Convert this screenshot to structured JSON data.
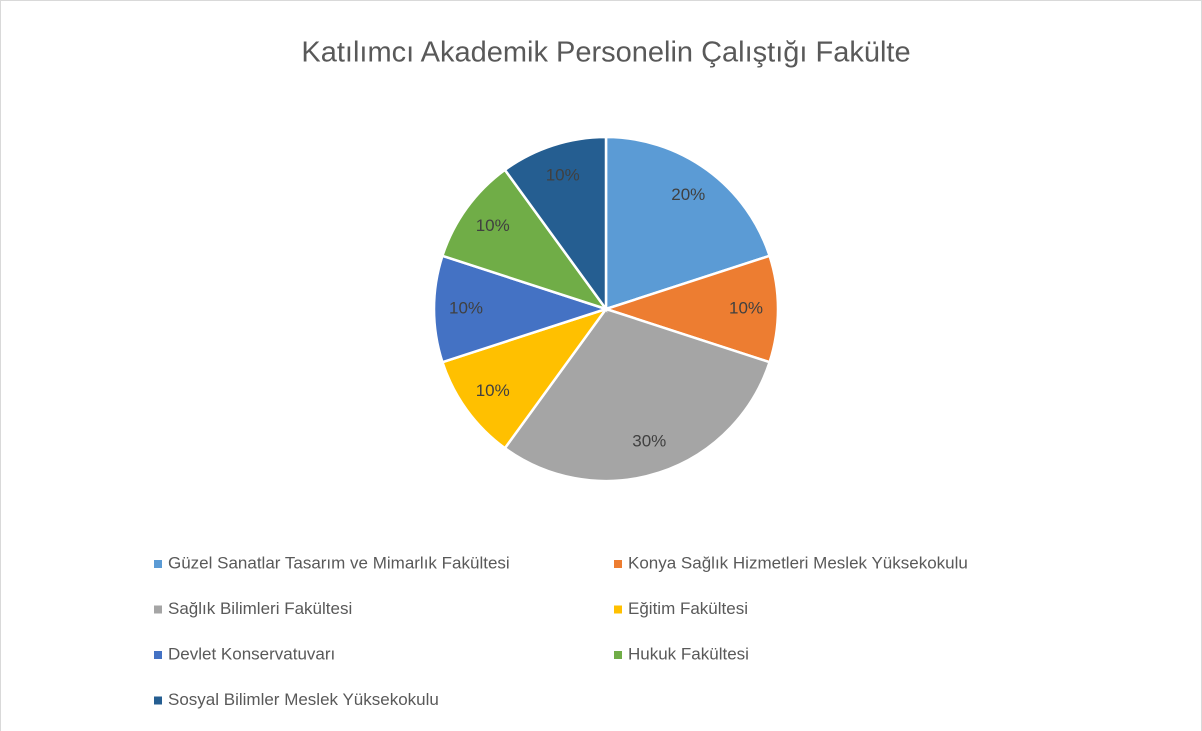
{
  "chart_data": {
    "type": "pie",
    "title": "Katılımcı Akademik Personelin Çalıştığı Fakülte",
    "categories": [
      "Güzel Sanatlar Tasarım ve Mimarlık Fakültesi",
      "Konya Sağlık Hizmetleri Meslek Yüksekokulu",
      "Sağlık Bilimleri Fakültesi",
      "Eğitim Fakültesi",
      "Devlet Konservatuvarı",
      "Hukuk Fakültesi",
      "Sosyal Bilimler Meslek Yüksekokulu"
    ],
    "values": [
      20,
      10,
      30,
      10,
      10,
      10,
      10
    ],
    "value_labels": [
      "20%",
      "10%",
      "30%",
      "10%",
      "10%",
      "10%",
      "10%"
    ],
    "colors": [
      "#5B9BD5",
      "#ED7D31",
      "#A5A5A5",
      "#FFC000",
      "#4472C4",
      "#70AD47",
      "#255E91"
    ],
    "legend": "bottom"
  }
}
